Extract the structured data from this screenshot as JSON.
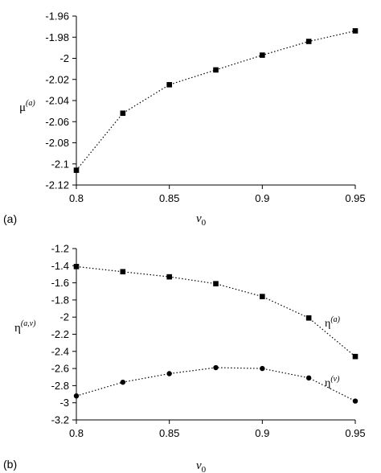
{
  "chart_data": [
    {
      "panel_label": "(a)",
      "type": "line",
      "xlabel": "v",
      "xlabel_sub": "0",
      "ylabel": "μ",
      "ylabel_sup": "(a)",
      "xlim": [
        0.8,
        0.95
      ],
      "ylim": [
        -2.12,
        -1.96
      ],
      "xticks": [
        0.8,
        0.85,
        0.9,
        0.95
      ],
      "xtick_labels": [
        "0.8",
        "0.85",
        "0.9",
        "0.95"
      ],
      "yticks": [
        -1.96,
        -1.98,
        -2,
        -2.02,
        -2.04,
        -2.06,
        -2.08,
        -2.1,
        -2.12
      ],
      "ytick_labels": [
        "-1.96",
        "-1.98",
        "-2",
        "-2.02",
        "-2.04",
        "-2.06",
        "-2.08",
        "-2.1",
        "-2.12"
      ],
      "series": [
        {
          "label": "",
          "marker": "square",
          "x": [
            0.8,
            0.825,
            0.85,
            0.875,
            0.9,
            0.925,
            0.95
          ],
          "y": [
            -2.106,
            -2.052,
            -2.025,
            -2.011,
            -1.997,
            -1.984,
            -1.974
          ]
        }
      ]
    },
    {
      "panel_label": "(b)",
      "type": "line",
      "xlabel": "v",
      "xlabel_sub": "0",
      "ylabel": "η",
      "ylabel_sup": "(a,v)",
      "xlim": [
        0.8,
        0.95
      ],
      "ylim": [
        -3.2,
        -1.2
      ],
      "xticks": [
        0.8,
        0.85,
        0.9,
        0.95
      ],
      "xtick_labels": [
        "0.8",
        "0.85",
        "0.9",
        "0.95"
      ],
      "yticks": [
        -1.2,
        -1.4,
        -1.6,
        -1.8,
        -2,
        -2.2,
        -2.4,
        -2.6,
        -2.8,
        -3,
        -3.2
      ],
      "ytick_labels": [
        "-1.2",
        "-1.4",
        "-1.6",
        "-1.8",
        "-2",
        "-2.2",
        "-2.4",
        "-2.6",
        "-2.8",
        "-3",
        "-3.2"
      ],
      "series": [
        {
          "label": "η",
          "label_sup": "(a)",
          "marker": "square",
          "x": [
            0.8,
            0.825,
            0.85,
            0.875,
            0.9,
            0.925,
            0.95
          ],
          "y": [
            -1.41,
            -1.47,
            -1.53,
            -1.61,
            -1.76,
            -2.01,
            -2.46
          ]
        },
        {
          "label": "η",
          "label_sup": "(v)",
          "marker": "circle",
          "x": [
            0.8,
            0.825,
            0.85,
            0.875,
            0.9,
            0.925,
            0.95
          ],
          "y": [
            -2.92,
            -2.76,
            -2.66,
            -2.59,
            -2.6,
            -2.71,
            -2.98
          ]
        }
      ]
    }
  ]
}
